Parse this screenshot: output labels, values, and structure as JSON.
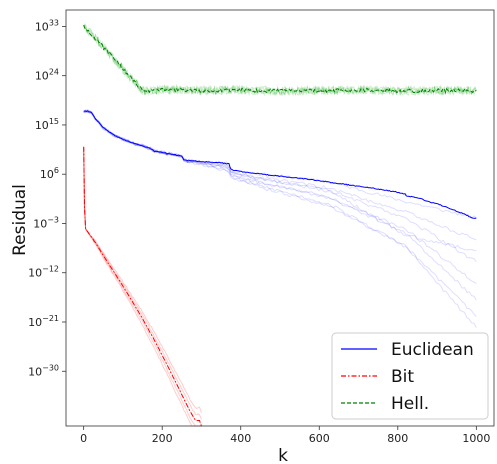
{
  "chart_data": {
    "type": "line",
    "xlabel": "k",
    "ylabel": "Residual",
    "y_scale": "log",
    "xlim": [
      -45,
      1045
    ],
    "ylim_log10": [
      -40,
      36
    ],
    "x_ticks": [
      0,
      200,
      400,
      600,
      800,
      1000
    ],
    "x_tick_labels": [
      "0",
      "200",
      "400",
      "600",
      "800",
      "1000"
    ],
    "y_ticks_log10": [
      33,
      24,
      15,
      6,
      -3,
      -12,
      -21,
      -30
    ],
    "y_tick_labels": [
      {
        "base": "10",
        "exp": "33"
      },
      {
        "base": "10",
        "exp": "24"
      },
      {
        "base": "10",
        "exp": "15"
      },
      {
        "base": "10",
        "exp": "6"
      },
      {
        "base": "10",
        "exp": "−3"
      },
      {
        "base": "10",
        "exp": "−12"
      },
      {
        "base": "10",
        "exp": "−21"
      },
      {
        "base": "10",
        "exp": "−30"
      }
    ],
    "legend": {
      "position": "lower-right"
    },
    "series": [
      {
        "name": "Euclidean",
        "color": "#0000ff",
        "style": "solid",
        "points_log10": [
          [
            0,
            17.5
          ],
          [
            10,
            17.5
          ],
          [
            20,
            17.3
          ],
          [
            30,
            16.2
          ],
          [
            50,
            14.5
          ],
          [
            80,
            13
          ],
          [
            120,
            11.8
          ],
          [
            150,
            11.2
          ],
          [
            170,
            10.7
          ],
          [
            180,
            10.2
          ],
          [
            200,
            10
          ],
          [
            230,
            9.6
          ],
          [
            250,
            9.3
          ],
          [
            255,
            8.6
          ],
          [
            270,
            8.5
          ],
          [
            300,
            8.3
          ],
          [
            330,
            8.2
          ],
          [
            350,
            8.1
          ],
          [
            370,
            7.9
          ],
          [
            375,
            6.9
          ],
          [
            390,
            6.6
          ],
          [
            430,
            6.2
          ],
          [
            480,
            5.8
          ],
          [
            530,
            5.4
          ],
          [
            580,
            5
          ],
          [
            630,
            4.5
          ],
          [
            680,
            4
          ],
          [
            720,
            3.6
          ],
          [
            760,
            3.2
          ],
          [
            800,
            2.7
          ],
          [
            820,
            2.3
          ],
          [
            820,
            2.1
          ],
          [
            850,
            1.7
          ],
          [
            860,
            1.6
          ],
          [
            870,
            1.1
          ],
          [
            900,
            0.6
          ],
          [
            930,
            -0.2
          ],
          [
            960,
            -1
          ],
          [
            990,
            -2
          ],
          [
            1000,
            -2
          ]
        ]
      },
      {
        "name": "Bit",
        "color": "#ff0000",
        "style": "dash-dot",
        "points_log10": [
          [
            0,
            11
          ],
          [
            2,
            0
          ],
          [
            5,
            -4
          ],
          [
            30,
            -6.5
          ],
          [
            60,
            -10
          ],
          [
            90,
            -13.3
          ],
          [
            120,
            -16.8
          ],
          [
            150,
            -20.4
          ],
          [
            180,
            -24.3
          ],
          [
            210,
            -28.5
          ],
          [
            240,
            -32.8
          ],
          [
            270,
            -37.2
          ],
          [
            285,
            -39
          ],
          [
            295,
            -39
          ],
          [
            300,
            -40
          ]
        ]
      },
      {
        "name": "Hell.",
        "color": "#008000",
        "style": "dashed",
        "points_log10": [
          [
            0,
            33.2
          ],
          [
            150,
            21.2
          ],
          [
            200,
            21.5
          ],
          [
            300,
            21.3
          ],
          [
            400,
            21.4
          ],
          [
            500,
            21.2
          ],
          [
            600,
            21.3
          ],
          [
            700,
            21.4
          ],
          [
            800,
            21.2
          ],
          [
            900,
            21.3
          ],
          [
            1000,
            21.3
          ]
        ]
      }
    ]
  }
}
